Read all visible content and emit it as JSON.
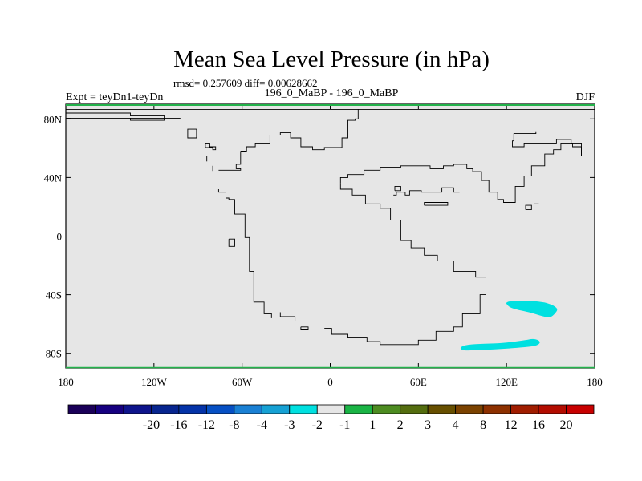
{
  "chart_data": {
    "type": "heatmap",
    "title": "Mean Sea Level Pressure (in hPa)",
    "stats_text": "rmsd= 0.257609 diff= 0.00628662",
    "left_label": "Expt = teyDn1-teyDn",
    "center_label": "196_0_MaBP - 196_0_MaBP",
    "right_label": "DJF",
    "x_range": [
      -180,
      180
    ],
    "y_range": [
      -90,
      90
    ],
    "x_ticks": [
      {
        "value": -180,
        "label": "180"
      },
      {
        "value": -120,
        "label": "120W"
      },
      {
        "value": -60,
        "label": "60W"
      },
      {
        "value": 0,
        "label": "0"
      },
      {
        "value": 60,
        "label": "60E"
      },
      {
        "value": 120,
        "label": "120E"
      },
      {
        "value": 180,
        "label": "180"
      }
    ],
    "y_ticks": [
      {
        "value": 80,
        "label": "80N"
      },
      {
        "value": 40,
        "label": "40N"
      },
      {
        "value": 0,
        "label": "0"
      },
      {
        "value": -40,
        "label": "40S"
      },
      {
        "value": -80,
        "label": "80S"
      }
    ],
    "background_color": "#e6e6e6",
    "coastline": [
      [
        [
          -102,
          80.5
        ],
        [
          -180,
          80.5
        ]
      ],
      [
        [
          -180,
          84
        ],
        [
          -136,
          84
        ],
        [
          -136,
          82
        ],
        [
          -113,
          82
        ],
        [
          -113,
          79
        ],
        [
          -136,
          79
        ],
        [
          -136,
          80.5
        ]
      ],
      [
        [
          -180,
          86.5
        ],
        [
          180,
          86.5
        ]
      ],
      [
        [
          -91,
          73
        ],
        [
          -91,
          67
        ],
        [
          -97,
          67
        ],
        [
          -97,
          73
        ],
        [
          -91,
          73
        ]
      ],
      [
        [
          -85,
          63
        ],
        [
          -82,
          63
        ],
        [
          -82,
          61
        ],
        [
          -78,
          61
        ],
        [
          -78,
          59
        ],
        [
          -80,
          59
        ],
        [
          -80,
          60.5
        ],
        [
          -85,
          60.5
        ],
        [
          -85,
          63
        ]
      ],
      [
        [
          -84,
          54.5
        ],
        [
          -84,
          51
        ]
      ],
      [
        [
          -80,
          48
        ],
        [
          -80,
          44.5
        ]
      ],
      [
        [
          -76,
          45
        ],
        [
          -61,
          45
        ],
        [
          -61,
          46
        ],
        [
          -64,
          46
        ],
        [
          -64,
          49
        ],
        [
          -61,
          49
        ],
        [
          -61,
          58
        ]
      ],
      [
        [
          -61,
          58
        ],
        [
          -57,
          58
        ],
        [
          -57,
          61
        ],
        [
          -51,
          61
        ],
        [
          -51,
          63
        ],
        [
          -41,
          63
        ],
        [
          -41,
          69
        ],
        [
          -34,
          69
        ],
        [
          -34,
          70.5
        ],
        [
          -27,
          70.5
        ],
        [
          -27,
          67
        ],
        [
          -20,
          67
        ],
        [
          -20,
          61
        ],
        [
          -12,
          61
        ],
        [
          -12,
          59
        ],
        [
          -4,
          59
        ],
        [
          -4,
          60.5
        ],
        [
          8,
          60.5
        ],
        [
          8,
          67
        ],
        [
          12,
          67
        ],
        [
          12,
          79
        ],
        [
          17,
          79
        ],
        [
          17,
          80
        ],
        [
          19,
          80
        ],
        [
          19,
          86.5
        ]
      ],
      [
        [
          -76,
          32
        ],
        [
          -76,
          30
        ],
        [
          -71,
          30
        ],
        [
          -71,
          26
        ],
        [
          -69,
          26
        ],
        [
          -69,
          25
        ],
        [
          -65,
          25
        ],
        [
          -65,
          15
        ],
        [
          -58,
          15
        ],
        [
          -58,
          -1
        ],
        [
          -55,
          -1
        ],
        [
          -55,
          -24
        ],
        [
          -52,
          -24
        ],
        [
          -52,
          -45
        ],
        [
          -45,
          -45
        ],
        [
          -45,
          -53
        ],
        [
          -40,
          -53
        ],
        [
          -40,
          -56
        ]
      ],
      [
        [
          -34,
          -52
        ],
        [
          -34,
          -55
        ],
        [
          -24,
          -55
        ],
        [
          -24,
          -58
        ]
      ],
      [
        [
          -69,
          -2
        ],
        [
          -69,
          -7
        ],
        [
          -65,
          -7
        ],
        [
          -65,
          -2
        ],
        [
          -69,
          -2
        ]
      ],
      [
        [
          -20,
          -62
        ],
        [
          -20,
          -64
        ],
        [
          -15,
          -64
        ],
        [
          -15,
          -62
        ],
        [
          -20,
          -62
        ]
      ],
      [
        [
          -4,
          -63
        ],
        [
          1,
          -63
        ],
        [
          1,
          -67
        ],
        [
          12,
          -67
        ],
        [
          12,
          -69
        ],
        [
          25,
          -69
        ],
        [
          25,
          -72
        ],
        [
          34,
          -72
        ],
        [
          34,
          -74
        ],
        [
          60,
          -74
        ],
        [
          60,
          -71
        ],
        [
          72,
          -71
        ],
        [
          72,
          -65
        ],
        [
          84,
          -65
        ],
        [
          84,
          -62
        ],
        [
          90,
          -62
        ],
        [
          90,
          -53
        ],
        [
          102,
          -53
        ],
        [
          102,
          -40
        ],
        [
          106,
          -40
        ],
        [
          106,
          -28
        ],
        [
          99,
          -28
        ],
        [
          99,
          -24
        ],
        [
          84,
          -24
        ],
        [
          84,
          -17
        ],
        [
          73,
          -17
        ],
        [
          73,
          -13
        ],
        [
          64,
          -13
        ],
        [
          64,
          -8
        ],
        [
          55,
          -8
        ],
        [
          55,
          -3
        ],
        [
          48,
          -3
        ],
        [
          48,
          11
        ],
        [
          41,
          11
        ],
        [
          41,
          19
        ],
        [
          34,
          19
        ],
        [
          34,
          22
        ],
        [
          24,
          22
        ],
        [
          24,
          28
        ],
        [
          15,
          28
        ],
        [
          15,
          32
        ],
        [
          7,
          32
        ],
        [
          7,
          36
        ]
      ],
      [
        [
          7,
          36
        ],
        [
          7,
          40
        ],
        [
          12,
          40
        ],
        [
          12,
          42
        ],
        [
          23,
          42
        ],
        [
          23,
          45
        ],
        [
          34,
          45
        ],
        [
          34,
          47
        ],
        [
          48,
          47
        ],
        [
          48,
          48
        ],
        [
          68,
          48
        ],
        [
          68,
          46
        ],
        [
          77,
          46
        ],
        [
          77,
          48
        ],
        [
          84,
          48
        ],
        [
          84,
          49
        ],
        [
          93,
          49
        ],
        [
          93,
          46
        ],
        [
          97,
          46
        ],
        [
          97,
          44
        ],
        [
          103,
          44
        ],
        [
          103,
          38
        ],
        [
          108,
          38
        ],
        [
          108,
          30
        ],
        [
          114,
          30
        ],
        [
          114,
          25
        ],
        [
          118,
          25
        ],
        [
          118,
          23
        ],
        [
          126,
          23
        ],
        [
          126,
          34
        ],
        [
          132,
          34
        ],
        [
          132,
          41
        ],
        [
          137,
          41
        ],
        [
          137,
          48
        ],
        [
          146,
          48
        ],
        [
          146,
          56
        ],
        [
          152,
          56
        ],
        [
          152,
          59
        ],
        [
          157,
          59
        ],
        [
          157,
          63
        ],
        [
          165,
          63
        ],
        [
          165,
          61
        ],
        [
          171,
          61
        ],
        [
          171,
          55
        ]
      ],
      [
        [
          171,
          55
        ],
        [
          171,
          63
        ],
        [
          164,
          63
        ],
        [
          164,
          66
        ],
        [
          154,
          66
        ],
        [
          154,
          63
        ],
        [
          132,
          63
        ],
        [
          132,
          61
        ],
        [
          124,
          61
        ],
        [
          124,
          65
        ],
        [
          125,
          65
        ],
        [
          125,
          70
        ],
        [
          140,
          70
        ],
        [
          140,
          71
        ]
      ],
      [
        [
          43,
          28
        ],
        [
          45,
          28
        ],
        [
          45,
          30
        ],
        [
          51,
          30
        ],
        [
          51,
          28
        ],
        [
          54,
          28
        ],
        [
          54,
          31
        ],
        [
          62,
          31
        ],
        [
          62,
          30
        ],
        [
          76,
          30
        ],
        [
          76,
          33
        ],
        [
          84,
          33
        ],
        [
          84,
          30
        ],
        [
          88,
          30
        ]
      ],
      [
        [
          64,
          21
        ],
        [
          80,
          21
        ],
        [
          80,
          23
        ],
        [
          64,
          23
        ],
        [
          64,
          21
        ]
      ],
      [
        [
          44,
          31
        ],
        [
          44,
          34
        ],
        [
          48,
          34
        ],
        [
          48,
          31
        ],
        [
          44,
          31
        ]
      ],
      [
        [
          133,
          18
        ],
        [
          133,
          21
        ],
        [
          137,
          21
        ],
        [
          137,
          18
        ],
        [
          133,
          18
        ]
      ],
      [
        [
          139,
          22
        ],
        [
          142,
          22
        ]
      ]
    ],
    "anomaly_regions": [
      {
        "bin": "-2 to -1",
        "color": "#00e0e0",
        "polygon": [
          [
            119,
            -44.5
          ],
          [
            133,
            -44
          ],
          [
            145,
            -45
          ],
          [
            150,
            -46.5
          ],
          [
            153,
            -48
          ],
          [
            155,
            -50
          ],
          [
            153,
            -53
          ],
          [
            150,
            -55.5
          ],
          [
            145,
            -55
          ],
          [
            136,
            -52
          ],
          [
            126,
            -50
          ],
          [
            121,
            -48
          ]
        ]
      },
      {
        "bin": "-2 to -1",
        "color": "#00e0e0",
        "polygon": [
          [
            88,
            -76
          ],
          [
            93,
            -74
          ],
          [
            105,
            -73.5
          ],
          [
            118,
            -73
          ],
          [
            125,
            -72
          ],
          [
            133,
            -71
          ],
          [
            138,
            -70
          ],
          [
            142,
            -71
          ],
          [
            143,
            -73
          ],
          [
            140,
            -75
          ],
          [
            130,
            -76
          ],
          [
            118,
            -77
          ],
          [
            106,
            -77.5
          ],
          [
            95,
            -78
          ],
          [
            90,
            -78
          ]
        ]
      }
    ],
    "colorbar": {
      "colors": [
        "#1a0059",
        "#160080",
        "#0e148c",
        "#07258f",
        "#0433a8",
        "#0650c4",
        "#1a80d4",
        "#16a1d4",
        "#00e0e0",
        "#e6e6e6",
        "#1ab445",
        "#4d8c21",
        "#546d0f",
        "#674f00",
        "#7b4200",
        "#8d3000",
        "#a01d00",
        "#b30c00",
        "#c80000"
      ],
      "labels": [
        "-20",
        "-16",
        "-12",
        "-8",
        "-4",
        "-3",
        "-2",
        "-1",
        "1",
        "2",
        "3",
        "4",
        "8",
        "12",
        "16",
        "20"
      ]
    }
  }
}
